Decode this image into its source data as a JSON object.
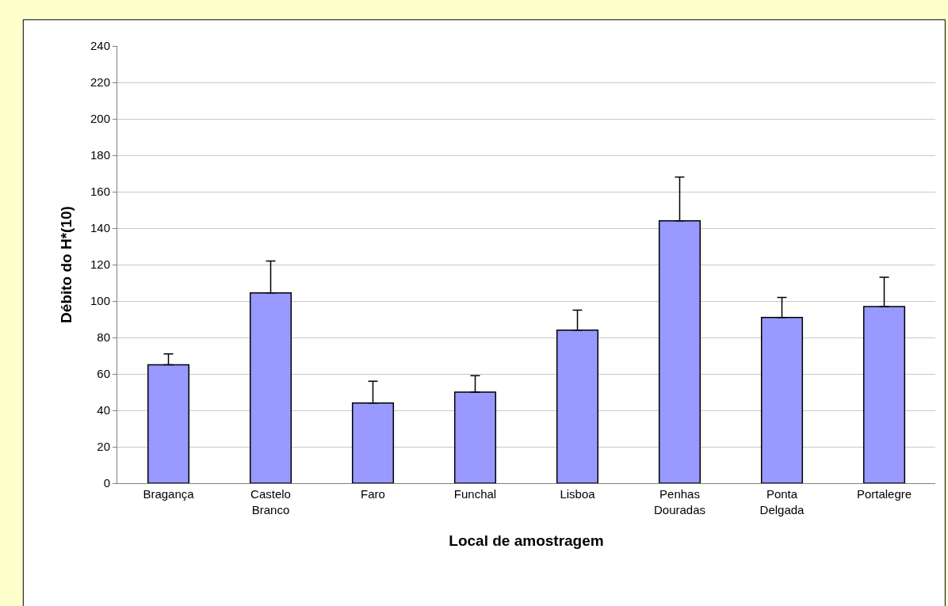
{
  "chart_data": {
    "type": "bar",
    "xlabel": "Local de amostragem",
    "ylabel": "Débito do H*(10)",
    "categories": [
      "Bragança",
      "Castelo Branco",
      "Faro",
      "Funchal",
      "Lisboa",
      "Penhas Douradas",
      "Ponta Delgada",
      "Portalegre"
    ],
    "values": [
      65,
      104.5,
      44,
      50,
      84,
      144,
      91,
      97
    ],
    "errors": [
      [
        65,
        71
      ],
      [
        104.5,
        122
      ],
      [
        44,
        56
      ],
      [
        50,
        59
      ],
      [
        84,
        95
      ],
      [
        144,
        168
      ],
      [
        91,
        102
      ],
      [
        97,
        113
      ]
    ],
    "color": "#9999ff",
    "ylim": [
      0,
      240
    ],
    "yticks": [
      0,
      20,
      40,
      60,
      80,
      100,
      120,
      140,
      160,
      180,
      200,
      220,
      240
    ],
    "grid": "y",
    "legend": false
  }
}
